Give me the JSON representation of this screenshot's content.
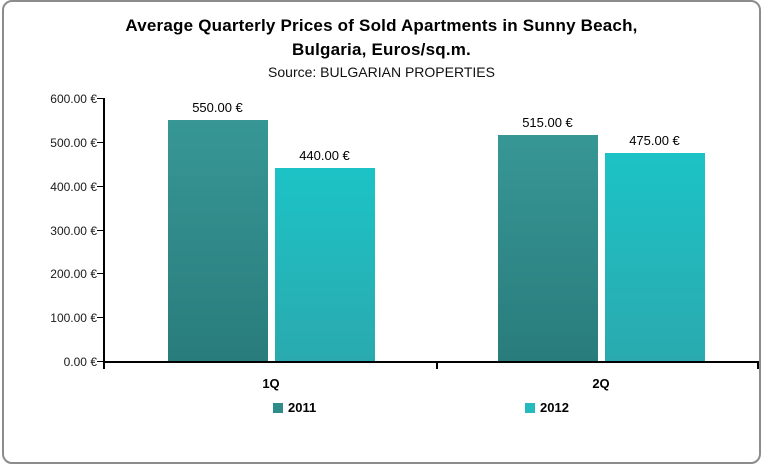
{
  "window": {
    "background": "#ffffff",
    "border_color": "#8c8c8c"
  },
  "title": {
    "line1": "Average Quarterly Prices of Sold Apartments in Sunny Beach,",
    "line2": "Bulgaria, Euros/sq.m.",
    "subtitle": "Source: BULGARIAN PROPERTIES"
  },
  "chart_data": {
    "type": "bar",
    "title": "Average Quarterly Prices of Sold Apartments in Sunny Beach, Bulgaria, Euros/sq.m.",
    "subtitle": "Source: BULGARIAN PROPERTIES",
    "categories": [
      "1Q",
      "2Q"
    ],
    "series": [
      {
        "name": "2011",
        "values": [
          550,
          515
        ],
        "labels": [
          "550.00 €",
          "515.00 €"
        ],
        "color": "#2E8C8B",
        "gradient_top": "#379795",
        "gradient_bottom": "#297C7C"
      },
      {
        "name": "2012",
        "values": [
          440,
          475
        ],
        "labels": [
          "440.00 €",
          "475.00 €"
        ],
        "color": "#25BABE",
        "gradient_top": "#1CC3C6",
        "gradient_bottom": "#2AAAAF"
      }
    ],
    "ylabel": "",
    "xlabel": "",
    "ylim": [
      0,
      600
    ],
    "ytick_step": 100,
    "yticks": [
      600,
      500,
      400,
      300,
      200,
      100,
      0
    ],
    "ytick_labels": [
      "600.00 €",
      "500.00 €",
      "400.00 €",
      "300.00 €",
      "200.00 €",
      "100.00 €",
      "0.00 €"
    ],
    "grid": false,
    "legend_position": "bottom",
    "axis_color": "#000000",
    "text_color": "#1a1a1a"
  }
}
